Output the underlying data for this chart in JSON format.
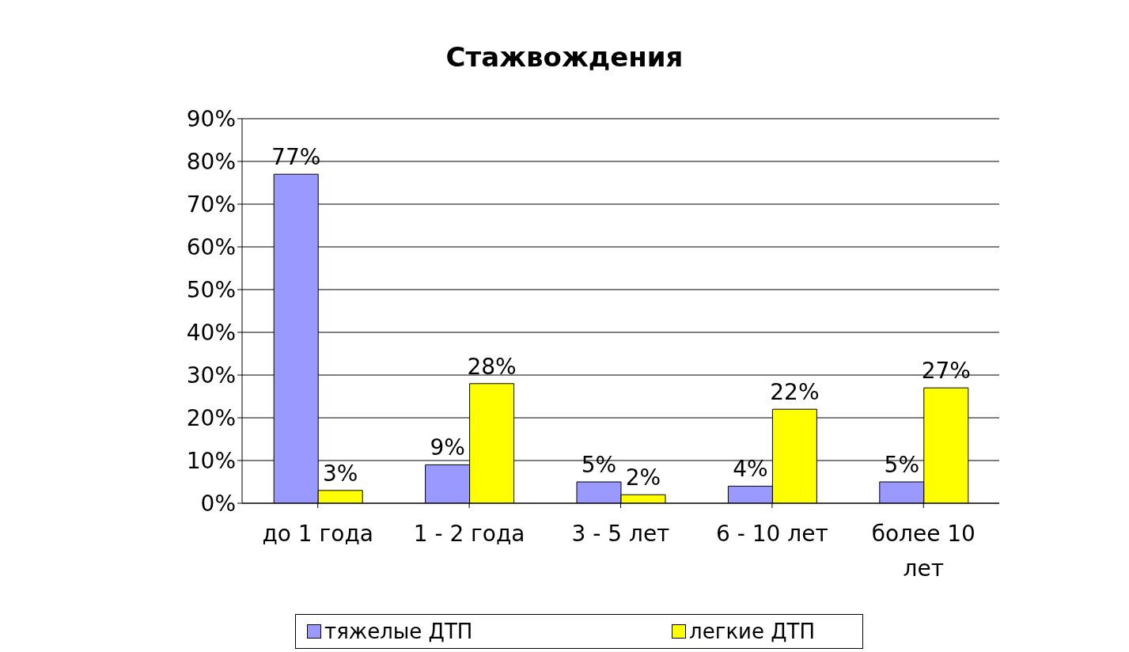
{
  "chart_data": {
    "type": "bar",
    "title": "Стажвождения",
    "categories": [
      "до 1 года",
      "1 - 2 года",
      "3 - 5 лет",
      "6 - 10 лет",
      "более 10 лет"
    ],
    "series": [
      {
        "name": "тяжелые ДТП",
        "color": "#9999ff",
        "values": [
          77,
          9,
          5,
          4,
          5
        ],
        "value_labels": [
          "77%",
          "9%",
          "5%",
          "4%",
          "5%"
        ]
      },
      {
        "name": "легкие ДТП",
        "color": "#ffff00",
        "values": [
          3,
          28,
          2,
          22,
          27
        ],
        "value_labels": [
          "3%",
          "28%",
          "2%",
          "22%",
          "27%"
        ]
      }
    ],
    "ylim": [
      0,
      90
    ],
    "yticks": [
      {
        "value": 0,
        "label": "0%"
      },
      {
        "value": 10,
        "label": "10%"
      },
      {
        "value": 20,
        "label": "20%"
      },
      {
        "value": 30,
        "label": "30%"
      },
      {
        "value": 40,
        "label": "40%"
      },
      {
        "value": 50,
        "label": "50%"
      },
      {
        "value": 60,
        "label": "60%"
      },
      {
        "value": 70,
        "label": "70%"
      },
      {
        "value": 80,
        "label": "80%"
      },
      {
        "value": 90,
        "label": "90%"
      }
    ],
    "grid": "y",
    "legend": "bottom"
  }
}
